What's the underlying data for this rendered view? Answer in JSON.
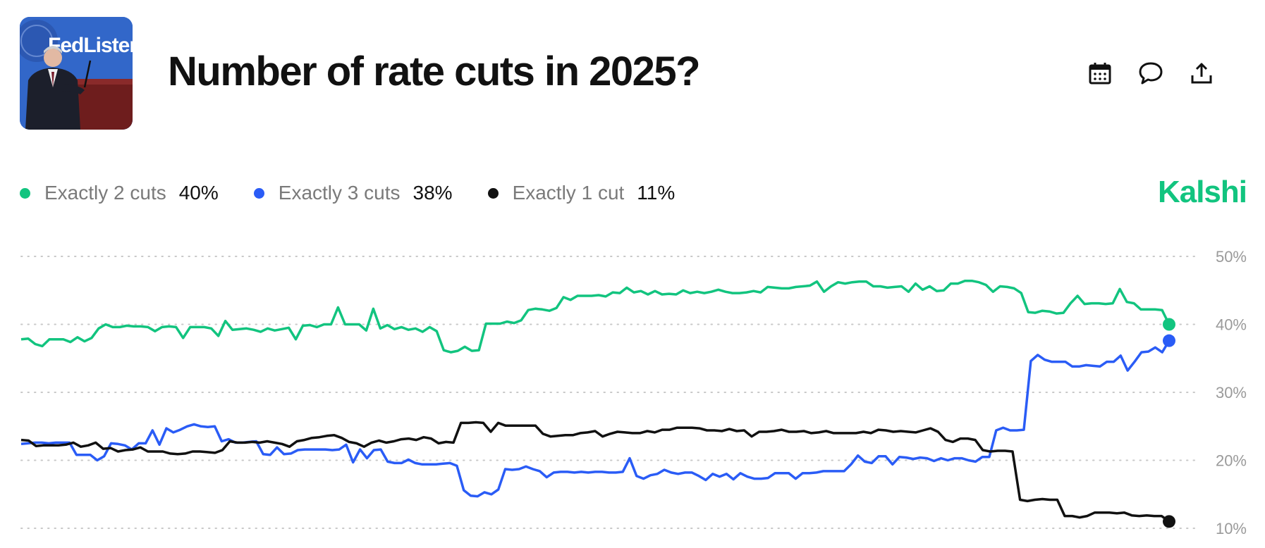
{
  "header": {
    "title": "Number of rate cuts in 2025?",
    "thumbnail_text": "FedListens",
    "actions": [
      {
        "name": "calendar-icon",
        "label": "calendar"
      },
      {
        "name": "comment-icon",
        "label": "comments"
      },
      {
        "name": "share-icon",
        "label": "share"
      }
    ]
  },
  "brand": {
    "label": "Kalshi",
    "color": "#12c47f"
  },
  "legend": [
    {
      "label": "Exactly 2 cuts",
      "value": "40%",
      "color": "#12c47f"
    },
    {
      "label": "Exactly 3 cuts",
      "value": "38%",
      "color": "#2a5cf6"
    },
    {
      "label": "Exactly 1 cut",
      "value": "11%",
      "color": "#111111"
    }
  ],
  "chart_data": {
    "type": "line",
    "yticks": [
      "50%",
      "40%",
      "30%",
      "20%",
      "10%"
    ],
    "ylim": [
      10,
      50
    ],
    "grid": "horizontal-dotted",
    "legend_position": "top-left",
    "series": [
      {
        "name": "Exactly 2 cuts",
        "color": "#12c47f",
        "values": [
          37.8,
          37.9,
          37.1,
          36.8,
          37.8,
          37.8,
          37.8,
          37.4,
          38.1,
          37.5,
          38.0,
          39.4,
          40.0,
          39.6,
          39.6,
          39.8,
          39.7,
          39.7,
          39.6,
          39.0,
          39.6,
          39.7,
          39.6,
          38.0,
          39.6,
          39.6,
          39.6,
          39.4,
          38.3,
          40.5,
          39.2,
          39.3,
          39.4,
          39.2,
          38.9,
          39.4,
          39.1,
          39.3,
          39.5,
          37.8,
          39.8,
          39.9,
          39.6,
          40.0,
          40.0,
          42.5,
          40.0,
          40.0,
          40.0,
          39.1,
          42.3,
          39.4,
          39.9,
          39.3,
          39.6,
          39.2,
          39.4,
          38.9,
          39.6,
          39.0,
          36.2,
          35.9,
          36.1,
          36.7,
          36.1,
          36.2,
          40.1,
          40.1,
          40.1,
          40.4,
          40.2,
          40.6,
          42.1,
          42.3,
          42.2,
          42.0,
          42.4,
          44.0,
          43.6,
          44.2,
          44.2,
          44.2,
          44.3,
          44.1,
          44.7,
          44.6,
          45.4,
          44.7,
          44.9,
          44.4,
          44.9,
          44.4,
          44.5,
          44.4,
          45.0,
          44.6,
          44.8,
          44.6,
          44.8,
          45.1,
          44.8,
          44.6,
          44.6,
          44.7,
          44.9,
          44.7,
          45.5,
          45.4,
          45.3,
          45.3,
          45.5,
          45.6,
          45.7,
          46.3,
          44.8,
          45.6,
          46.2,
          46.0,
          46.2,
          46.3,
          46.3,
          45.6,
          45.6,
          45.4,
          45.5,
          45.6,
          44.8,
          46.0,
          45.1,
          45.6,
          44.9,
          45.0,
          46.0,
          46.0,
          46.4,
          46.4,
          46.2,
          45.8,
          44.8,
          45.6,
          45.5,
          45.3,
          44.6,
          41.8,
          41.7,
          42.0,
          41.9,
          41.6,
          41.7,
          43.1,
          44.2,
          43.0,
          43.1,
          43.1,
          43.0,
          43.1,
          45.2,
          43.3,
          43.1,
          42.2,
          42.2,
          42.2,
          42.1,
          40.0
        ]
      },
      {
        "name": "Exactly 3 cuts",
        "color": "#2a5cf6",
        "values": [
          22.4,
          22.5,
          22.6,
          22.6,
          22.5,
          22.6,
          22.6,
          22.6,
          20.8,
          20.8,
          20.8,
          20.0,
          20.6,
          22.5,
          22.4,
          22.2,
          21.6,
          22.5,
          22.5,
          24.4,
          22.3,
          24.7,
          24.1,
          24.5,
          25.0,
          25.3,
          25.0,
          24.9,
          25.0,
          22.8,
          23.1,
          22.6,
          22.6,
          22.7,
          22.8,
          20.9,
          20.8,
          21.9,
          20.9,
          21.0,
          21.5,
          21.6,
          21.6,
          21.6,
          21.6,
          21.5,
          21.6,
          22.3,
          19.7,
          21.6,
          20.3,
          21.5,
          21.6,
          19.8,
          19.6,
          19.6,
          20.1,
          19.6,
          19.4,
          19.4,
          19.4,
          19.5,
          19.6,
          19.2,
          15.6,
          14.8,
          14.7,
          15.3,
          15.0,
          15.7,
          18.7,
          18.6,
          18.7,
          19.1,
          18.7,
          18.4,
          17.5,
          18.2,
          18.3,
          18.3,
          18.2,
          18.3,
          18.2,
          18.3,
          18.3,
          18.2,
          18.2,
          18.3,
          20.3,
          17.7,
          17.3,
          17.8,
          18.0,
          18.6,
          18.2,
          18.0,
          18.2,
          18.2,
          17.7,
          17.1,
          18.0,
          17.6,
          18.0,
          17.2,
          18.1,
          17.6,
          17.3,
          17.3,
          17.4,
          18.1,
          18.1,
          18.1,
          17.3,
          18.1,
          18.1,
          18.2,
          18.4,
          18.4,
          18.4,
          18.4,
          19.4,
          20.7,
          19.8,
          19.6,
          20.6,
          20.6,
          19.4,
          20.5,
          20.4,
          20.2,
          20.4,
          20.3,
          19.9,
          20.3,
          20.0,
          20.3,
          20.3,
          20.0,
          19.8,
          20.5,
          20.5,
          24.4,
          24.8,
          24.4,
          24.4,
          24.5,
          34.6,
          35.5,
          34.8,
          34.5,
          34.5,
          34.5,
          33.8,
          33.8,
          34.0,
          33.9,
          33.8,
          34.5,
          34.5,
          35.4,
          33.2,
          34.5,
          35.9,
          36.0,
          36.6,
          35.9,
          37.6
        ]
      },
      {
        "name": "Exactly 1 cut",
        "color": "#111111",
        "values": [
          23.0,
          22.9,
          22.1,
          22.2,
          22.2,
          22.2,
          22.3,
          22.6,
          22.0,
          22.2,
          22.6,
          21.7,
          21.8,
          21.3,
          21.5,
          21.6,
          21.9,
          21.3,
          21.3,
          21.3,
          21.0,
          20.9,
          21.0,
          21.3,
          21.3,
          21.2,
          21.1,
          21.5,
          22.8,
          22.6,
          22.6,
          22.7,
          22.6,
          22.8,
          22.6,
          22.4,
          22.0,
          22.8,
          23.0,
          23.3,
          23.4,
          23.6,
          23.7,
          23.3,
          22.7,
          22.5,
          22.0,
          22.6,
          22.9,
          22.6,
          22.8,
          23.1,
          23.2,
          23.0,
          23.4,
          23.2,
          22.5,
          22.7,
          22.6,
          25.5,
          25.5,
          25.6,
          25.5,
          24.2,
          25.5,
          25.1,
          25.1,
          25.1,
          25.1,
          25.1,
          23.9,
          23.5,
          23.6,
          23.7,
          23.7,
          24.0,
          24.1,
          24.3,
          23.5,
          23.9,
          24.2,
          24.1,
          24.0,
          24.0,
          24.3,
          24.1,
          24.5,
          24.5,
          24.8,
          24.8,
          24.8,
          24.7,
          24.4,
          24.4,
          24.3,
          24.6,
          24.3,
          24.4,
          23.5,
          24.2,
          24.2,
          24.3,
          24.5,
          24.2,
          24.2,
          24.3,
          24.0,
          24.1,
          24.3,
          24.0,
          24.0,
          24.0,
          24.0,
          24.2,
          24.0,
          24.5,
          24.4,
          24.2,
          24.3,
          24.2,
          24.1,
          24.4,
          24.7,
          24.2,
          23.0,
          22.7,
          23.2,
          23.2,
          23.0,
          21.5,
          21.3,
          21.4,
          21.4,
          21.3,
          14.2,
          14.0,
          14.2,
          14.3,
          14.2,
          14.2,
          11.8,
          11.8,
          11.6,
          11.8,
          12.3,
          12.3,
          12.3,
          12.2,
          12.3,
          11.9,
          11.8,
          11.9,
          11.8,
          11.8,
          11.0
        ]
      }
    ]
  }
}
